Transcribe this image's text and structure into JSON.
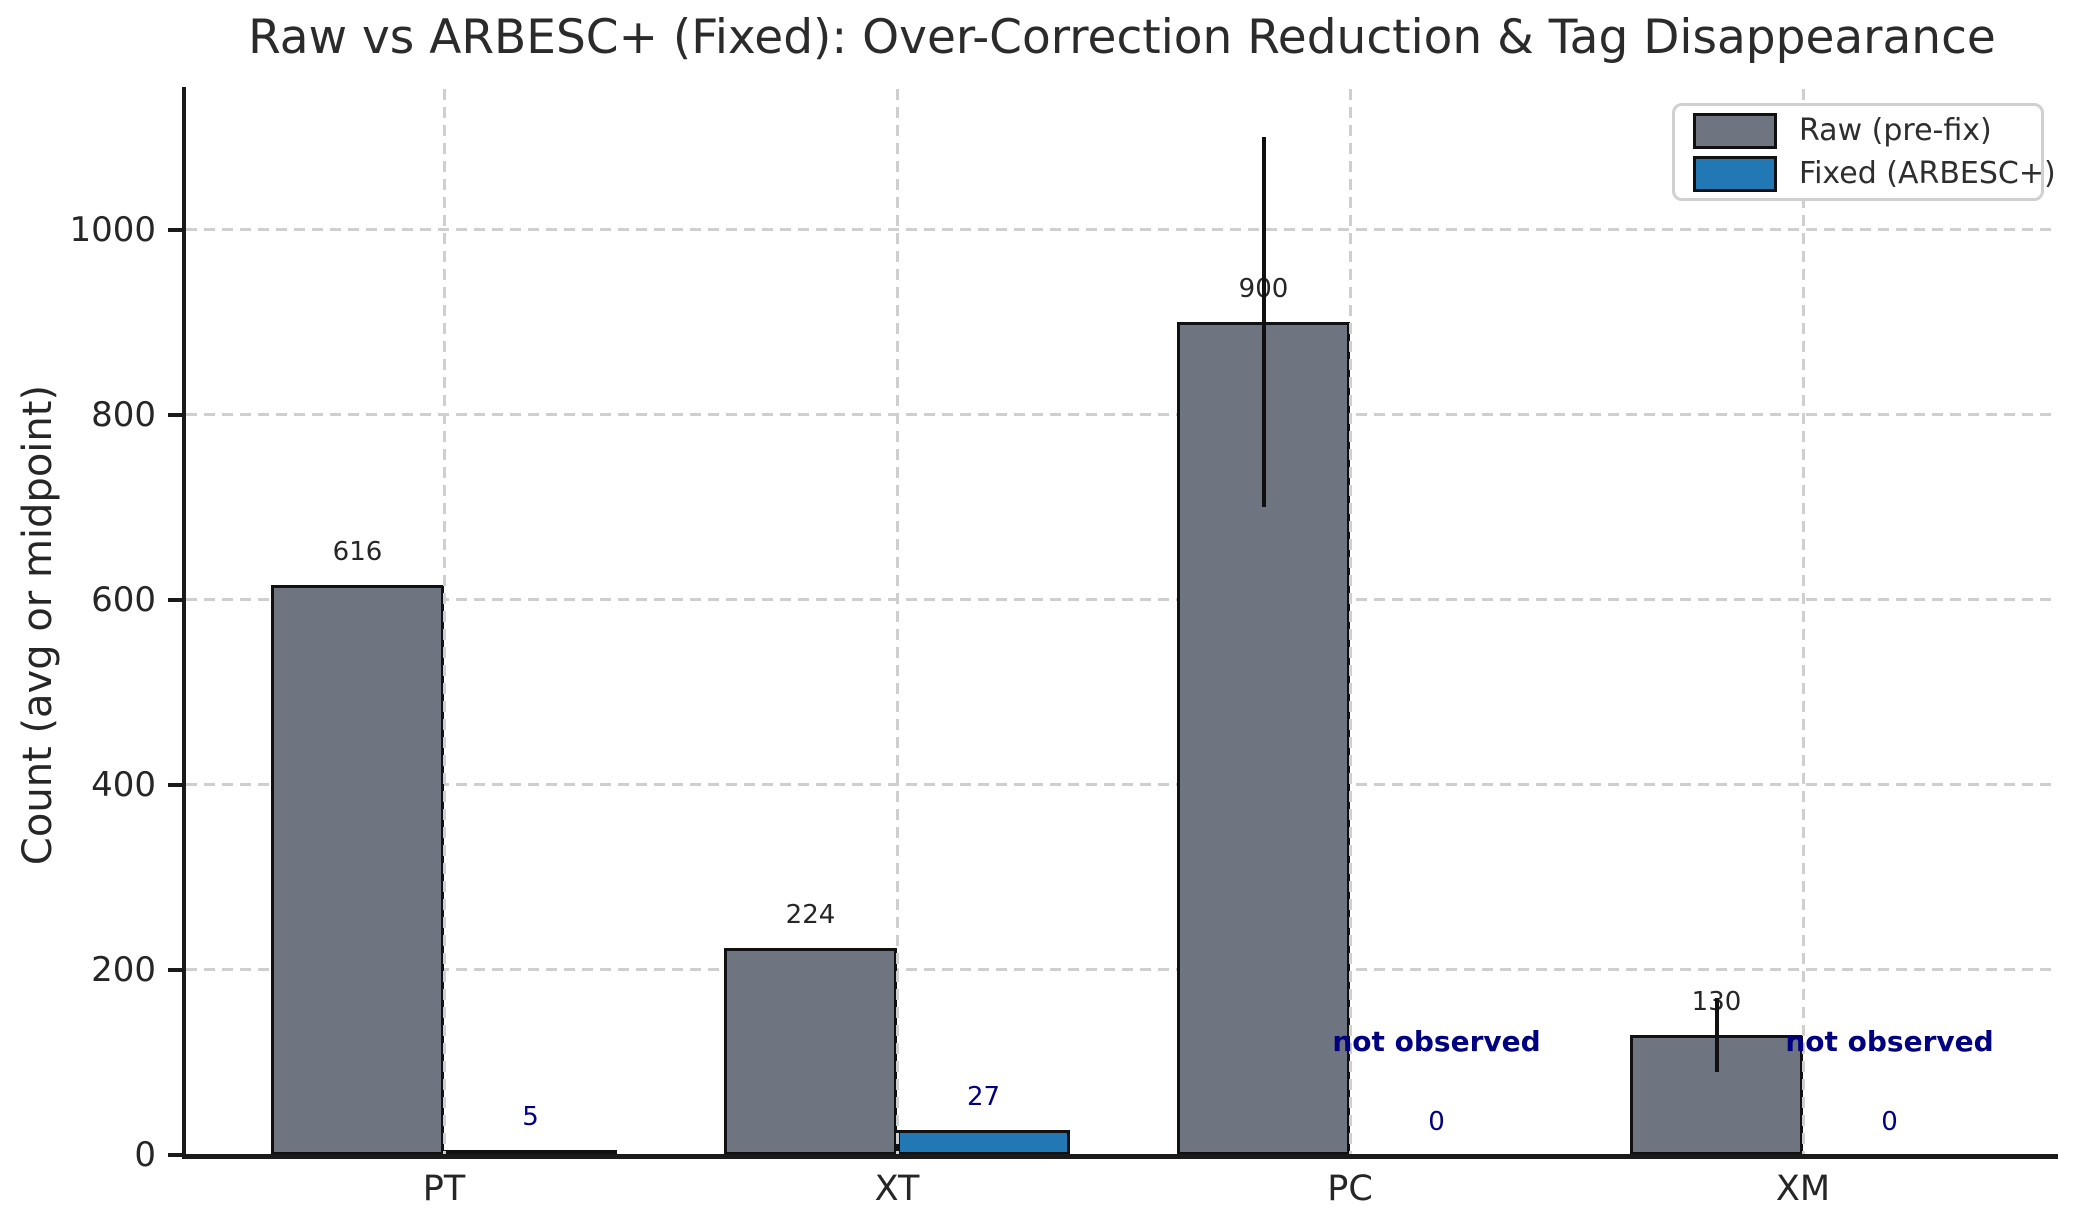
{
  "chart_data": {
    "type": "bar",
    "title": "Raw vs ARBESC+ (Fixed): Over-Correction Reduction & Tag Disappearance",
    "xlabel": "",
    "ylabel": "Count (avg or midpoint)",
    "categories": [
      "PT",
      "XT",
      "PC",
      "XM"
    ],
    "series": [
      {
        "name": "Raw (pre-fix)",
        "color": "#6e7580",
        "values": [
          616,
          224,
          900,
          130
        ],
        "value_labels": [
          "616",
          "224",
          "900",
          "130"
        ],
        "value_label_color": "#262626",
        "error_bars": [
          {
            "index": 2,
            "low": 700,
            "high": 1100
          },
          {
            "index": 3,
            "low": 90,
            "high": 170
          }
        ]
      },
      {
        "name": "Fixed (ARBESC+)",
        "color": "#2277b5",
        "values": [
          5,
          27,
          0,
          0
        ],
        "value_labels": [
          "5",
          "27",
          "0",
          "0"
        ],
        "value_label_color": "#000080",
        "annotations": [
          {
            "index": 2,
            "text": "not observed"
          },
          {
            "index": 3,
            "text": "not observed"
          }
        ]
      }
    ],
    "yticks": [
      "0",
      "200",
      "400",
      "600",
      "800",
      "1000"
    ],
    "ytick_values": [
      0,
      200,
      400,
      600,
      800,
      1000
    ],
    "ylim": [
      0,
      1152
    ],
    "grid": {
      "style": "dashed",
      "color": "#cfcfcf",
      "axes": "both"
    },
    "legend": {
      "position": "upper right"
    },
    "annotation_color": "#000080",
    "error_bar_color": "#111111"
  }
}
